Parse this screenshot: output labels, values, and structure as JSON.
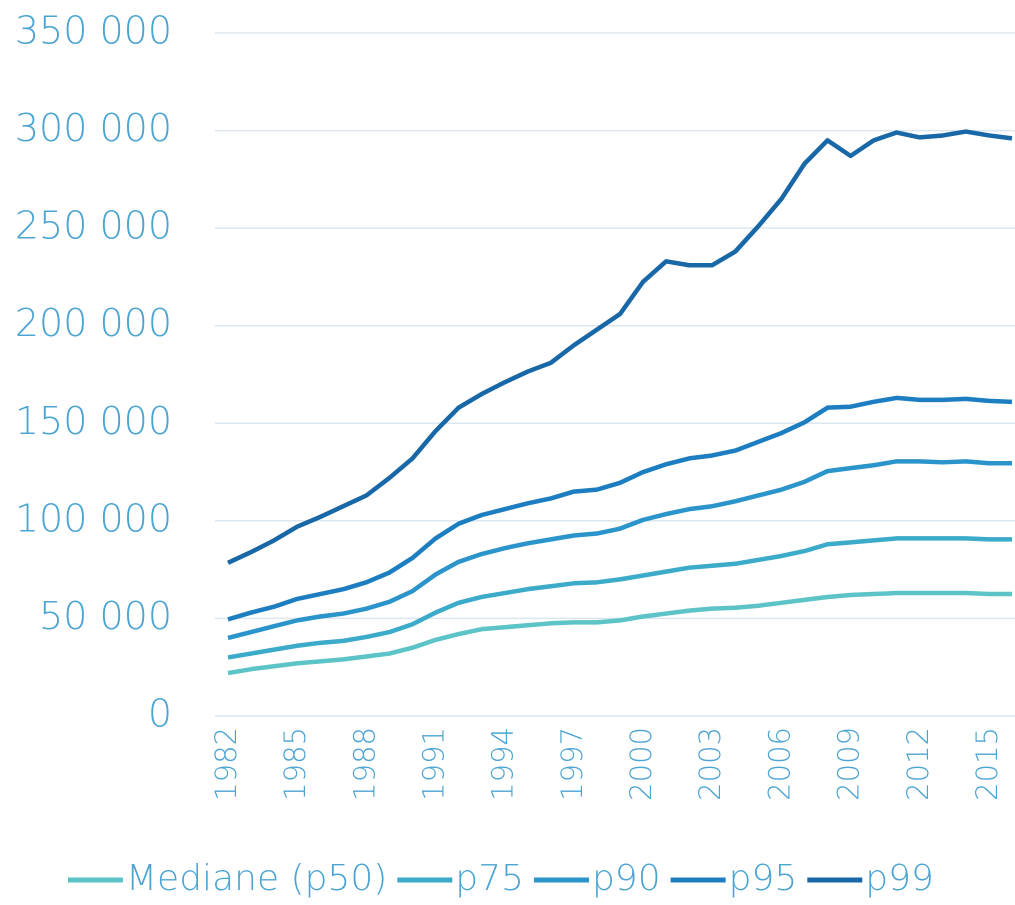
{
  "chart_data": {
    "type": "line",
    "x": [
      1982,
      1983,
      1984,
      1985,
      1986,
      1987,
      1988,
      1989,
      1990,
      1991,
      1992,
      1993,
      1994,
      1995,
      1996,
      1997,
      1998,
      1999,
      2000,
      2001,
      2002,
      2003,
      2004,
      2005,
      2006,
      2007,
      2008,
      2009,
      2010,
      2011,
      2012,
      2013,
      2014,
      2015,
      2016
    ],
    "xlim": [
      1982,
      2016
    ],
    "xticks": [
      1982,
      1985,
      1988,
      1991,
      1994,
      1997,
      2000,
      2003,
      2006,
      2009,
      2012,
      2015
    ],
    "ylim": [
      0,
      350000
    ],
    "yticks": [
      0,
      {
        "value": 50000,
        "label": "50 000"
      },
      {
        "value": 100000,
        "label": "100 000"
      },
      {
        "value": 150000,
        "label": "150 000"
      },
      {
        "value": 200000,
        "label": "200 000"
      },
      {
        "value": 250000,
        "label": "250 000"
      },
      {
        "value": 300000,
        "label": "300 000"
      },
      {
        "value": 350000,
        "label": "350 000"
      }
    ],
    "grid": true,
    "legend": "bottom",
    "series": [
      {
        "name": "Mediane (p50)",
        "color": "#5cc3c6",
        "values": [
          22000,
          24000,
          25500,
          27000,
          28000,
          29000,
          30500,
          32000,
          35000,
          39000,
          42000,
          44500,
          45500,
          46500,
          47500,
          48000,
          48000,
          49000,
          51000,
          52500,
          54000,
          55000,
          55500,
          56500,
          58000,
          59500,
          61000,
          62000,
          62500,
          63000,
          63000,
          63000,
          63000,
          62500,
          62500
        ]
      },
      {
        "name": "p75",
        "color": "#3caac9",
        "values": [
          30000,
          32000,
          34000,
          36000,
          37500,
          38500,
          40500,
          43000,
          47000,
          53000,
          58000,
          61000,
          63000,
          65000,
          66500,
          68000,
          68500,
          70000,
          72000,
          74000,
          76000,
          77000,
          78000,
          80000,
          82000,
          84500,
          88000,
          89000,
          90000,
          91000,
          91000,
          91000,
          91000,
          90500,
          90500
        ]
      },
      {
        "name": "p90",
        "color": "#2a94cb",
        "values": [
          40000,
          43000,
          46000,
          49000,
          51000,
          52500,
          55000,
          58500,
          64000,
          72500,
          79000,
          83000,
          86000,
          88500,
          90500,
          92500,
          93500,
          96000,
          100500,
          103500,
          106000,
          107500,
          110000,
          113000,
          116000,
          120000,
          125500,
          127000,
          128500,
          130500,
          130500,
          130000,
          130500,
          129500,
          129500
        ]
      },
      {
        "name": "p95",
        "color": "#1c7ec0",
        "values": [
          49500,
          53000,
          56000,
          60000,
          62500,
          65000,
          68500,
          73500,
          81000,
          91000,
          98500,
          103000,
          106000,
          109000,
          111500,
          115000,
          116000,
          119500,
          125000,
          129000,
          132000,
          133500,
          136000,
          140500,
          145000,
          150500,
          158000,
          158500,
          161000,
          163000,
          162000,
          162000,
          162500,
          161500,
          161000
        ]
      },
      {
        "name": "p99",
        "color": "#1867a7",
        "values": [
          78500,
          84000,
          90000,
          97000,
          102000,
          107500,
          113000,
          122000,
          132000,
          146000,
          158000,
          165000,
          171000,
          176500,
          181000,
          190000,
          198000,
          206000,
          222500,
          233000,
          231000,
          231000,
          238000,
          251000,
          265000,
          283000,
          295000,
          287000,
          295000,
          299000,
          296500,
          297500,
          299500,
          297500,
          296000
        ]
      }
    ]
  }
}
